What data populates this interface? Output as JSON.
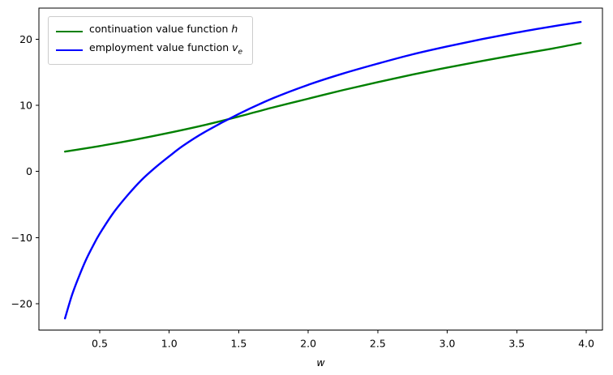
{
  "figure": {
    "background": "#ffffff",
    "axis_color": "#000000",
    "tick_label_color": "#000000",
    "xlabel": "w",
    "legend": {
      "position": "upper left",
      "items": [
        {
          "prefix": "continuation value function ",
          "symbol": "h",
          "subscript": "",
          "color": "#008000"
        },
        {
          "prefix": "employment value function ",
          "symbol": "v",
          "subscript": "e",
          "color": "#0000ff"
        }
      ]
    }
  },
  "chart_data": {
    "type": "line",
    "title": "",
    "xlabel": "w",
    "ylabel": "",
    "grid": false,
    "legend_position": "upper left",
    "xlim": [
      0.0625,
      4.1166
    ],
    "ylim": [
      -23.96,
      24.69
    ],
    "x_ticks": [
      0.5,
      1.0,
      1.5,
      2.0,
      2.5,
      3.0,
      3.5,
      4.0
    ],
    "x_tick_labels": [
      "0.5",
      "1.0",
      "1.5",
      "2.0",
      "2.5",
      "3.0",
      "3.5",
      "4.0"
    ],
    "y_ticks": [
      -20,
      -10,
      0,
      10,
      20
    ],
    "y_tick_labels": [
      "−20",
      "−10",
      "0",
      "10",
      "20"
    ],
    "series": [
      {
        "name": "continuation value function h",
        "color": "#008000",
        "linewidth": 2.4,
        "x": [
          0.25,
          0.5,
          0.75,
          1.0,
          1.25,
          1.5,
          1.75,
          2.0,
          2.25,
          2.5,
          2.75,
          3.0,
          3.25,
          3.5,
          3.75,
          3.96
        ],
        "y": [
          3.0,
          3.85,
          4.8,
          5.85,
          7.0,
          8.3,
          9.7,
          11.0,
          12.3,
          13.5,
          14.65,
          15.7,
          16.7,
          17.65,
          18.55,
          19.4
        ]
      },
      {
        "name": "employment value function v_e",
        "color": "#0000ff",
        "linewidth": 2.4,
        "x": [
          0.25,
          0.3,
          0.35,
          0.4,
          0.45,
          0.5,
          0.6,
          0.7,
          0.8,
          0.9,
          1.0,
          1.1,
          1.25,
          1.5,
          1.75,
          2.0,
          2.25,
          2.5,
          2.75,
          3.0,
          3.25,
          3.5,
          3.75,
          3.96
        ],
        "y": [
          -22.2,
          -18.7,
          -15.9,
          -13.4,
          -11.3,
          -9.4,
          -6.2,
          -3.6,
          -1.3,
          0.6,
          2.3,
          3.9,
          5.9,
          8.7,
          11.1,
          13.1,
          14.8,
          16.3,
          17.7,
          18.9,
          20.0,
          21.0,
          21.9,
          22.6
        ]
      }
    ]
  }
}
